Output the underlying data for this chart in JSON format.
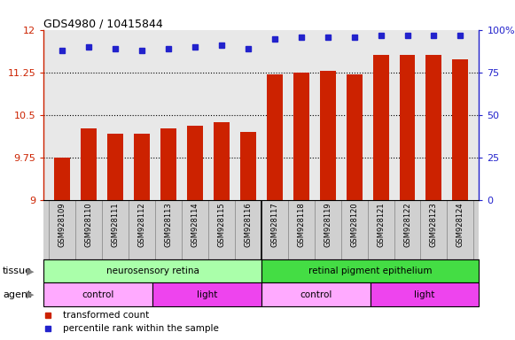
{
  "title": "GDS4980 / 10415844",
  "samples": [
    "GSM928109",
    "GSM928110",
    "GSM928111",
    "GSM928112",
    "GSM928113",
    "GSM928114",
    "GSM928115",
    "GSM928116",
    "GSM928117",
    "GSM928118",
    "GSM928119",
    "GSM928120",
    "GSM928121",
    "GSM928122",
    "GSM928123",
    "GSM928124"
  ],
  "bar_values": [
    9.75,
    10.27,
    10.18,
    10.17,
    10.27,
    10.32,
    10.38,
    10.21,
    11.22,
    11.25,
    11.28,
    11.22,
    11.56,
    11.57,
    11.56,
    11.48
  ],
  "percentile_values": [
    88,
    90,
    89,
    88,
    89,
    90,
    91,
    89,
    95,
    96,
    96,
    96,
    97,
    97,
    97,
    97
  ],
  "bar_color": "#cc2200",
  "dot_color": "#2222cc",
  "ylim_left": [
    9.0,
    12.0
  ],
  "ylim_right": [
    0,
    100
  ],
  "yticks_left": [
    9,
    9.75,
    10.5,
    11.25,
    12
  ],
  "ytick_left_labels": [
    "9",
    "9.75",
    "10.5",
    "11.25",
    "12"
  ],
  "yticks_right": [
    0,
    25,
    50,
    75,
    100
  ],
  "ytick_right_labels": [
    "0",
    "25",
    "50",
    "75",
    "100%"
  ],
  "grid_lines": [
    9.75,
    10.5,
    11.25
  ],
  "tissue_labels": [
    {
      "text": "neurosensory retina",
      "start": 0,
      "end": 7,
      "color": "#aaffaa"
    },
    {
      "text": "retinal pigment epithelium",
      "start": 8,
      "end": 15,
      "color": "#44dd44"
    }
  ],
  "agent_labels": [
    {
      "text": "control",
      "start": 0,
      "end": 3,
      "color": "#ffaaff"
    },
    {
      "text": "light",
      "start": 4,
      "end": 7,
      "color": "#ee44ee"
    },
    {
      "text": "control",
      "start": 8,
      "end": 11,
      "color": "#ffaaff"
    },
    {
      "text": "light",
      "start": 12,
      "end": 15,
      "color": "#ee44ee"
    }
  ],
  "legend_items": [
    {
      "label": "transformed count",
      "color": "#cc2200"
    },
    {
      "label": "percentile rank within the sample",
      "color": "#2222cc"
    }
  ],
  "chart_bg": "#e8e8e8",
  "xlabel_bg": "#d0d0d0",
  "fig_bg": "#ffffff"
}
